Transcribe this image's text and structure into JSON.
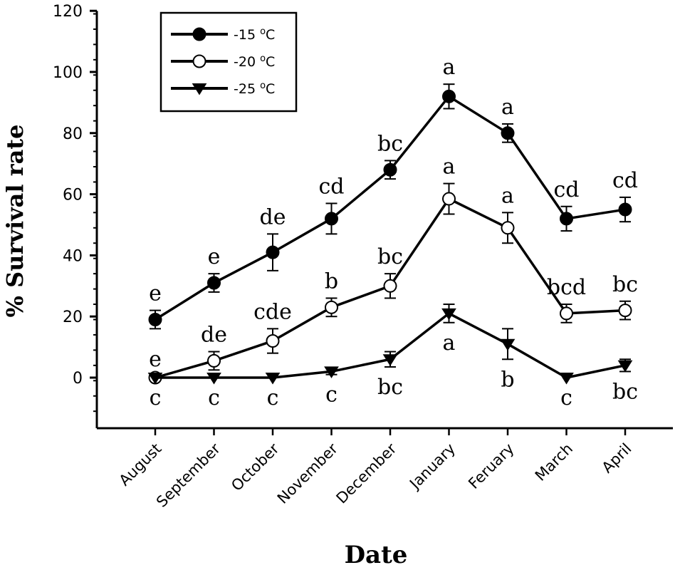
{
  "chart_data": {
    "type": "line",
    "xlabel": "Date",
    "ylabel": "% Survival rate",
    "ylim": [
      -16,
      120
    ],
    "yticks": [
      0,
      20,
      40,
      60,
      80,
      100,
      120
    ],
    "categories": [
      "August",
      "September",
      "October",
      "November",
      "December",
      "January",
      "Feruary",
      "March",
      "April"
    ],
    "legend": {
      "placement": "top-left",
      "boxed": true
    },
    "series": [
      {
        "name": "-15 oC",
        "legend_main": "-15 ",
        "legend_sup": "o",
        "legend_unit": "C",
        "marker": "filled-circle",
        "values": [
          19,
          31,
          41,
          52,
          68,
          92,
          80,
          52,
          55
        ],
        "errors": [
          3,
          3,
          6,
          5,
          3,
          4,
          3,
          4,
          4
        ],
        "letters": [
          "e",
          "e",
          "de",
          "cd",
          "bc",
          "a",
          "a",
          "cd",
          "cd"
        ],
        "letter_position": "above"
      },
      {
        "name": "-20 oC",
        "legend_main": "-20 ",
        "legend_sup": "o",
        "legend_unit": "C",
        "marker": "open-circle",
        "values": [
          0,
          5.5,
          12,
          23,
          30,
          58.5,
          49,
          21,
          22
        ],
        "errors": [
          0.5,
          3,
          4,
          3,
          4,
          5,
          5,
          3,
          3
        ],
        "letters": [
          "e",
          "de",
          "cde",
          "b",
          "bc",
          "a",
          "a",
          "bcd",
          "bc"
        ],
        "letter_position": "above"
      },
      {
        "name": "-25 oC",
        "legend_main": "-25 ",
        "legend_sup": "o",
        "legend_unit": "C",
        "marker": "filled-triangle-down",
        "values": [
          0,
          0,
          0,
          2,
          6,
          21,
          11,
          0,
          4
        ],
        "errors": [
          0,
          0,
          0,
          1,
          2.5,
          3,
          5,
          0,
          2
        ],
        "letters": [
          "c",
          "c",
          "c",
          "c",
          "bc",
          "a",
          "b",
          "c",
          "bc"
        ],
        "letter_position": "below"
      }
    ]
  }
}
